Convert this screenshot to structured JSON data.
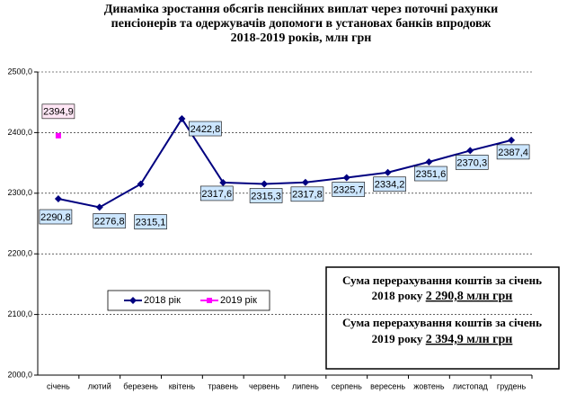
{
  "chart_data": {
    "type": "line",
    "title": [
      "Динаміка зростання обсягів пенсійних виплат через поточні рахунки",
      "пенсіонерів та одержувачів допомоги в установах банків впродовж",
      "2018-2019 років, млн грн"
    ],
    "categories": [
      "січень",
      "лютий",
      "березень",
      "квітень",
      "травень",
      "червень",
      "липень",
      "серпень",
      "вересень",
      "жовтень",
      "листопад",
      "грудень"
    ],
    "series": [
      {
        "name": "2018 рік",
        "color": "#000080",
        "marker": "diamond",
        "values": [
          2290.8,
          2276.8,
          2315.1,
          2422.8,
          2317.6,
          2315.3,
          2317.8,
          2325.7,
          2334.2,
          2351.6,
          2370.3,
          2387.4
        ],
        "value_labels": [
          "2290,8",
          "2276,8",
          "2315,1",
          "2422,8",
          "2317,6",
          "2315,3",
          "2317,8",
          "2325,7",
          "2334,2",
          "2351,6",
          "2370,3",
          "2387,4"
        ]
      },
      {
        "name": "2019 рік",
        "color": "#ff00ff",
        "marker": "square",
        "values": [
          2394.9,
          null,
          null,
          null,
          null,
          null,
          null,
          null,
          null,
          null,
          null,
          null
        ],
        "value_labels": [
          "2394,9",
          null,
          null,
          null,
          null,
          null,
          null,
          null,
          null,
          null,
          null,
          null
        ]
      }
    ],
    "ylim": [
      2000,
      2500
    ],
    "yticks": [
      {
        "value": 2000,
        "label": "2000,0"
      },
      {
        "value": 2100,
        "label": "2100,0"
      },
      {
        "value": 2200,
        "label": "2200,0"
      },
      {
        "value": 2300,
        "label": "2300,0"
      },
      {
        "value": 2400,
        "label": "2400,0"
      },
      {
        "value": 2500,
        "label": "2500,0"
      }
    ],
    "grid": true,
    "annotations": [
      {
        "line1": "Сума перерахування коштів за січень",
        "line2": "2018 року",
        "amount": "2 290,8 млн грн"
      },
      {
        "line1": "Сума перерахування коштів за січень",
        "line2": "2019 року",
        "amount": "2 394,9 млн грн"
      }
    ]
  }
}
